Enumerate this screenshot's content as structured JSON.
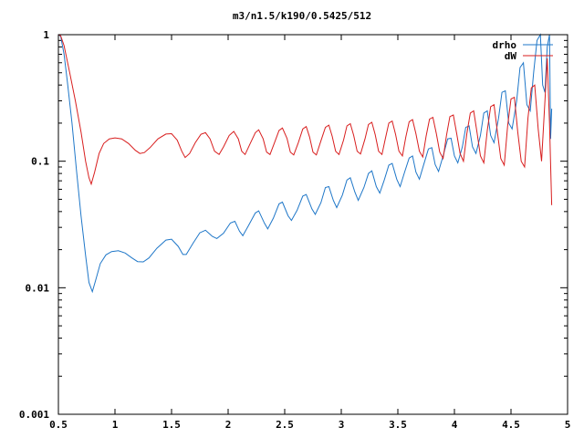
{
  "chart_data": {
    "type": "line",
    "title": "m3/n1.5/k190/0.5425/512",
    "x_scale": "linear",
    "y_scale": "log",
    "xlim": [
      0.5,
      5
    ],
    "ylim": [
      0.001,
      1
    ],
    "x_ticks": [
      "0.5",
      "1",
      "1.5",
      "2",
      "2.5",
      "3",
      "3.5",
      "4",
      "4.5",
      "5"
    ],
    "y_ticks": [
      "0.001",
      "0.01",
      "0.1",
      "1"
    ],
    "legend_position": "top-right",
    "grid": false,
    "series": [
      {
        "name": "drho",
        "color": "#1f77c8",
        "points": [
          [
            0.5,
            1.0
          ],
          [
            0.52,
            0.97
          ],
          [
            0.55,
            0.7
          ],
          [
            0.58,
            0.42
          ],
          [
            0.62,
            0.2
          ],
          [
            0.66,
            0.085
          ],
          [
            0.7,
            0.037
          ],
          [
            0.74,
            0.018
          ],
          [
            0.77,
            0.011
          ],
          [
            0.8,
            0.0093
          ],
          [
            0.83,
            0.0115
          ],
          [
            0.87,
            0.0155
          ],
          [
            0.92,
            0.0182
          ],
          [
            0.97,
            0.0193
          ],
          [
            1.03,
            0.0196
          ],
          [
            1.09,
            0.0188
          ],
          [
            1.15,
            0.0172
          ],
          [
            1.2,
            0.0161
          ],
          [
            1.25,
            0.016
          ],
          [
            1.3,
            0.0172
          ],
          [
            1.37,
            0.0205
          ],
          [
            1.45,
            0.0238
          ],
          [
            1.5,
            0.0242
          ],
          [
            1.56,
            0.0212
          ],
          [
            1.6,
            0.0183
          ],
          [
            1.63,
            0.0183
          ],
          [
            1.69,
            0.0225
          ],
          [
            1.75,
            0.0272
          ],
          [
            1.8,
            0.0285
          ],
          [
            1.86,
            0.0255
          ],
          [
            1.9,
            0.0245
          ],
          [
            1.96,
            0.027
          ],
          [
            2.02,
            0.0325
          ],
          [
            2.06,
            0.0335
          ],
          [
            2.1,
            0.028
          ],
          [
            2.13,
            0.0258
          ],
          [
            2.18,
            0.031
          ],
          [
            2.24,
            0.039
          ],
          [
            2.27,
            0.0405
          ],
          [
            2.32,
            0.0325
          ],
          [
            2.35,
            0.0292
          ],
          [
            2.4,
            0.0355
          ],
          [
            2.45,
            0.046
          ],
          [
            2.48,
            0.0475
          ],
          [
            2.53,
            0.037
          ],
          [
            2.56,
            0.034
          ],
          [
            2.61,
            0.041
          ],
          [
            2.66,
            0.053
          ],
          [
            2.69,
            0.0545
          ],
          [
            2.74,
            0.042
          ],
          [
            2.77,
            0.038
          ],
          [
            2.82,
            0.047
          ],
          [
            2.86,
            0.062
          ],
          [
            2.89,
            0.063
          ],
          [
            2.93,
            0.049
          ],
          [
            2.96,
            0.043
          ],
          [
            3.01,
            0.054
          ],
          [
            3.05,
            0.071
          ],
          [
            3.08,
            0.074
          ],
          [
            3.12,
            0.057
          ],
          [
            3.15,
            0.049
          ],
          [
            3.2,
            0.062
          ],
          [
            3.24,
            0.08
          ],
          [
            3.27,
            0.084
          ],
          [
            3.31,
            0.063
          ],
          [
            3.34,
            0.056
          ],
          [
            3.38,
            0.071
          ],
          [
            3.42,
            0.093
          ],
          [
            3.45,
            0.096
          ],
          [
            3.49,
            0.072
          ],
          [
            3.52,
            0.063
          ],
          [
            3.56,
            0.082
          ],
          [
            3.6,
            0.106
          ],
          [
            3.63,
            0.11
          ],
          [
            3.66,
            0.082
          ],
          [
            3.69,
            0.072
          ],
          [
            3.73,
            0.095
          ],
          [
            3.77,
            0.125
          ],
          [
            3.8,
            0.128
          ],
          [
            3.83,
            0.094
          ],
          [
            3.86,
            0.083
          ],
          [
            3.9,
            0.11
          ],
          [
            3.94,
            0.15
          ],
          [
            3.97,
            0.152
          ],
          [
            4.0,
            0.11
          ],
          [
            4.03,
            0.097
          ],
          [
            4.07,
            0.13
          ],
          [
            4.1,
            0.185
          ],
          [
            4.13,
            0.19
          ],
          [
            4.16,
            0.13
          ],
          [
            4.19,
            0.115
          ],
          [
            4.23,
            0.16
          ],
          [
            4.26,
            0.24
          ],
          [
            4.29,
            0.25
          ],
          [
            4.32,
            0.16
          ],
          [
            4.35,
            0.14
          ],
          [
            4.39,
            0.22
          ],
          [
            4.42,
            0.35
          ],
          [
            4.45,
            0.36
          ],
          [
            4.48,
            0.2
          ],
          [
            4.51,
            0.18
          ],
          [
            4.55,
            0.3
          ],
          [
            4.58,
            0.55
          ],
          [
            4.61,
            0.6
          ],
          [
            4.64,
            0.28
          ],
          [
            4.67,
            0.25
          ],
          [
            4.7,
            0.5
          ],
          [
            4.73,
            0.9
          ],
          [
            4.76,
            1.0
          ],
          [
            4.78,
            0.4
          ],
          [
            4.8,
            0.35
          ],
          [
            4.82,
            0.8
          ],
          [
            4.84,
            1.0
          ],
          [
            4.85,
            0.15
          ],
          [
            4.86,
            0.26
          ]
        ]
      },
      {
        "name": "dW",
        "color": "#d81e1e",
        "points": [
          [
            0.5,
            1.0
          ],
          [
            0.52,
            0.98
          ],
          [
            0.55,
            0.82
          ],
          [
            0.6,
            0.5
          ],
          [
            0.65,
            0.3
          ],
          [
            0.7,
            0.17
          ],
          [
            0.74,
            0.1
          ],
          [
            0.77,
            0.074
          ],
          [
            0.79,
            0.066
          ],
          [
            0.82,
            0.082
          ],
          [
            0.86,
            0.115
          ],
          [
            0.9,
            0.138
          ],
          [
            0.95,
            0.15
          ],
          [
            1.0,
            0.153
          ],
          [
            1.06,
            0.15
          ],
          [
            1.12,
            0.138
          ],
          [
            1.18,
            0.122
          ],
          [
            1.22,
            0.115
          ],
          [
            1.26,
            0.117
          ],
          [
            1.31,
            0.128
          ],
          [
            1.38,
            0.15
          ],
          [
            1.45,
            0.164
          ],
          [
            1.5,
            0.165
          ],
          [
            1.55,
            0.147
          ],
          [
            1.59,
            0.12
          ],
          [
            1.62,
            0.107
          ],
          [
            1.66,
            0.115
          ],
          [
            1.71,
            0.14
          ],
          [
            1.76,
            0.163
          ],
          [
            1.8,
            0.168
          ],
          [
            1.84,
            0.15
          ],
          [
            1.88,
            0.12
          ],
          [
            1.92,
            0.113
          ],
          [
            1.96,
            0.13
          ],
          [
            2.01,
            0.16
          ],
          [
            2.05,
            0.172
          ],
          [
            2.09,
            0.15
          ],
          [
            2.12,
            0.12
          ],
          [
            2.15,
            0.113
          ],
          [
            2.19,
            0.135
          ],
          [
            2.24,
            0.168
          ],
          [
            2.27,
            0.177
          ],
          [
            2.31,
            0.15
          ],
          [
            2.34,
            0.118
          ],
          [
            2.37,
            0.113
          ],
          [
            2.41,
            0.14
          ],
          [
            2.45,
            0.175
          ],
          [
            2.48,
            0.183
          ],
          [
            2.52,
            0.152
          ],
          [
            2.55,
            0.118
          ],
          [
            2.58,
            0.112
          ],
          [
            2.62,
            0.14
          ],
          [
            2.66,
            0.18
          ],
          [
            2.69,
            0.188
          ],
          [
            2.72,
            0.155
          ],
          [
            2.75,
            0.118
          ],
          [
            2.78,
            0.112
          ],
          [
            2.82,
            0.145
          ],
          [
            2.86,
            0.185
          ],
          [
            2.89,
            0.193
          ],
          [
            2.92,
            0.157
          ],
          [
            2.95,
            0.12
          ],
          [
            2.98,
            0.113
          ],
          [
            3.02,
            0.147
          ],
          [
            3.05,
            0.19
          ],
          [
            3.08,
            0.198
          ],
          [
            3.11,
            0.16
          ],
          [
            3.14,
            0.12
          ],
          [
            3.17,
            0.114
          ],
          [
            3.21,
            0.15
          ],
          [
            3.24,
            0.195
          ],
          [
            3.27,
            0.203
          ],
          [
            3.3,
            0.162
          ],
          [
            3.33,
            0.12
          ],
          [
            3.36,
            0.113
          ],
          [
            3.39,
            0.152
          ],
          [
            3.42,
            0.2
          ],
          [
            3.45,
            0.208
          ],
          [
            3.48,
            0.163
          ],
          [
            3.51,
            0.12
          ],
          [
            3.54,
            0.11
          ],
          [
            3.57,
            0.155
          ],
          [
            3.6,
            0.205
          ],
          [
            3.63,
            0.213
          ],
          [
            3.66,
            0.165
          ],
          [
            3.69,
            0.12
          ],
          [
            3.72,
            0.108
          ],
          [
            3.75,
            0.158
          ],
          [
            3.78,
            0.215
          ],
          [
            3.81,
            0.222
          ],
          [
            3.84,
            0.165
          ],
          [
            3.87,
            0.118
          ],
          [
            3.9,
            0.105
          ],
          [
            3.93,
            0.16
          ],
          [
            3.96,
            0.225
          ],
          [
            3.99,
            0.232
          ],
          [
            4.02,
            0.165
          ],
          [
            4.05,
            0.115
          ],
          [
            4.08,
            0.1
          ],
          [
            4.11,
            0.165
          ],
          [
            4.14,
            0.24
          ],
          [
            4.17,
            0.25
          ],
          [
            4.2,
            0.168
          ],
          [
            4.23,
            0.11
          ],
          [
            4.26,
            0.097
          ],
          [
            4.29,
            0.175
          ],
          [
            4.32,
            0.27
          ],
          [
            4.35,
            0.28
          ],
          [
            4.38,
            0.17
          ],
          [
            4.41,
            0.105
          ],
          [
            4.44,
            0.093
          ],
          [
            4.47,
            0.19
          ],
          [
            4.5,
            0.31
          ],
          [
            4.53,
            0.32
          ],
          [
            4.56,
            0.17
          ],
          [
            4.59,
            0.1
          ],
          [
            4.62,
            0.09
          ],
          [
            4.65,
            0.22
          ],
          [
            4.68,
            0.38
          ],
          [
            4.71,
            0.4
          ],
          [
            4.74,
            0.18
          ],
          [
            4.77,
            0.1
          ],
          [
            4.8,
            0.3
          ],
          [
            4.82,
            0.65
          ],
          [
            4.84,
            0.2
          ],
          [
            4.86,
            0.045
          ]
        ]
      }
    ]
  }
}
